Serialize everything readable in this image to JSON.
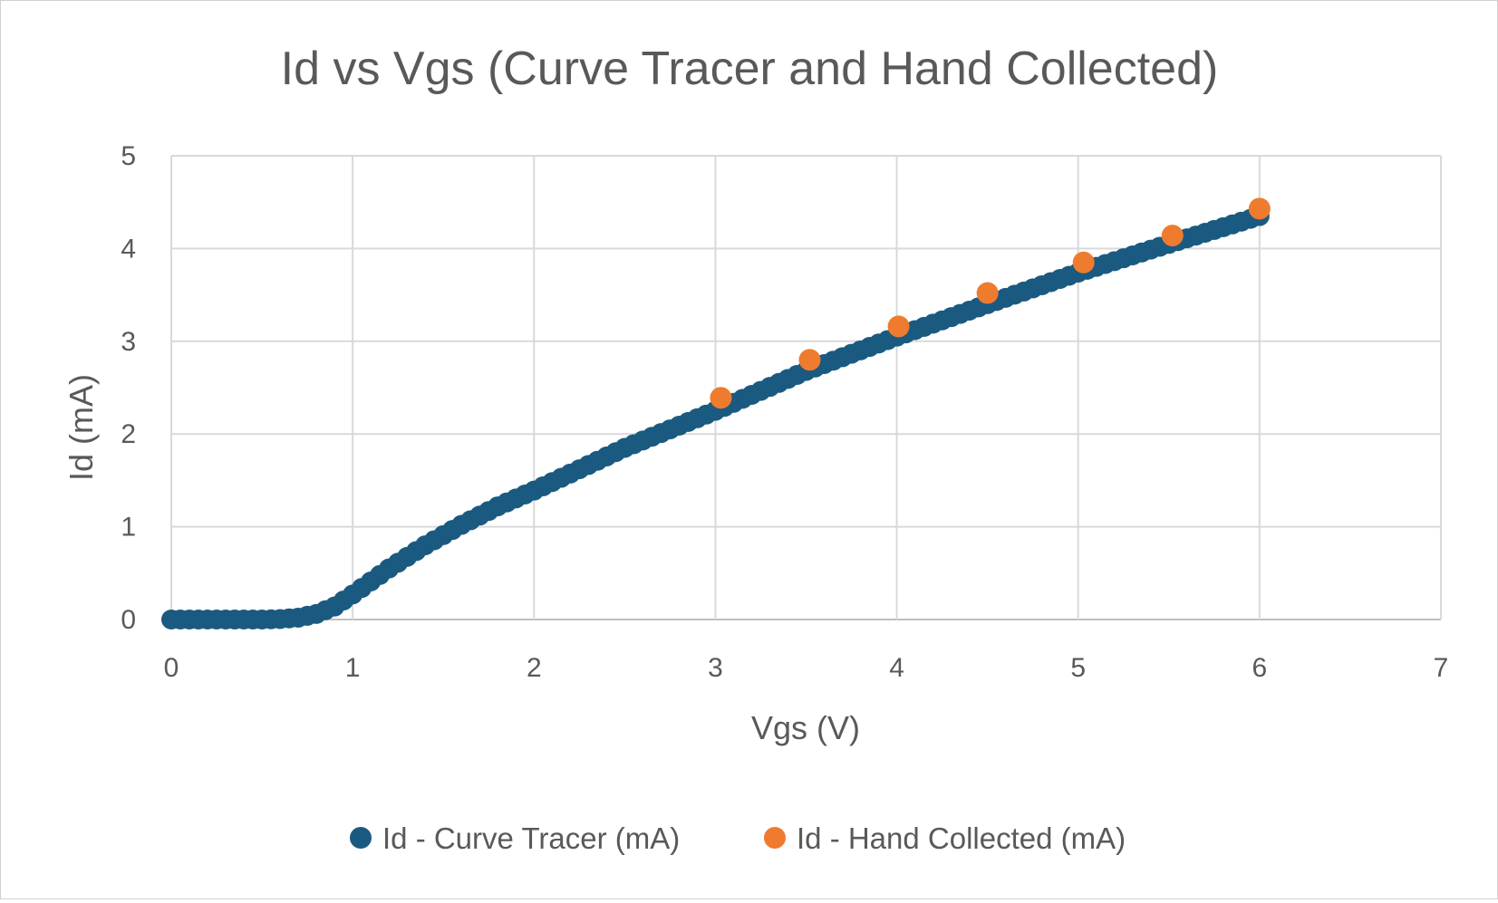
{
  "chart_data": {
    "type": "scatter",
    "title": "Id vs Vgs (Curve Tracer and Hand Collected)",
    "xlabel": "Vgs (V)",
    "ylabel": "Id (mA)",
    "xlim": [
      0,
      7
    ],
    "ylim": [
      0,
      5
    ],
    "xticks": [
      "0",
      "1",
      "2",
      "3",
      "4",
      "5",
      "6",
      "7"
    ],
    "yticks": [
      "0",
      "1",
      "2",
      "3",
      "4",
      "5"
    ],
    "grid": true,
    "legend_position": "bottom",
    "series": [
      {
        "name": "Id - Curve Tracer (mA)",
        "color": "#1a5a80",
        "x_start": 0,
        "x_end": 6,
        "x_step": 0.05,
        "curve_knots": [
          [
            0,
            0
          ],
          [
            0.5,
            0
          ],
          [
            0.6,
            0.005
          ],
          [
            0.7,
            0.02
          ],
          [
            0.8,
            0.06
          ],
          [
            0.9,
            0.14
          ],
          [
            1.0,
            0.27
          ],
          [
            1.2,
            0.55
          ],
          [
            1.4,
            0.8
          ],
          [
            1.6,
            1.02
          ],
          [
            1.8,
            1.22
          ],
          [
            2.0,
            1.39
          ],
          [
            2.5,
            1.85
          ],
          [
            3.0,
            2.25
          ],
          [
            3.5,
            2.68
          ],
          [
            4.0,
            3.05
          ],
          [
            4.5,
            3.4
          ],
          [
            5.0,
            3.74
          ],
          [
            5.5,
            4.05
          ],
          [
            6.0,
            4.35
          ]
        ]
      },
      {
        "name": "Id - Hand Collected (mA)",
        "color": "#ef7b2e",
        "points": [
          [
            3.03,
            2.39
          ],
          [
            3.52,
            2.8
          ],
          [
            4.01,
            3.16
          ],
          [
            4.5,
            3.52
          ],
          [
            5.03,
            3.85
          ],
          [
            5.52,
            4.14
          ],
          [
            6.0,
            4.43
          ]
        ]
      }
    ]
  }
}
